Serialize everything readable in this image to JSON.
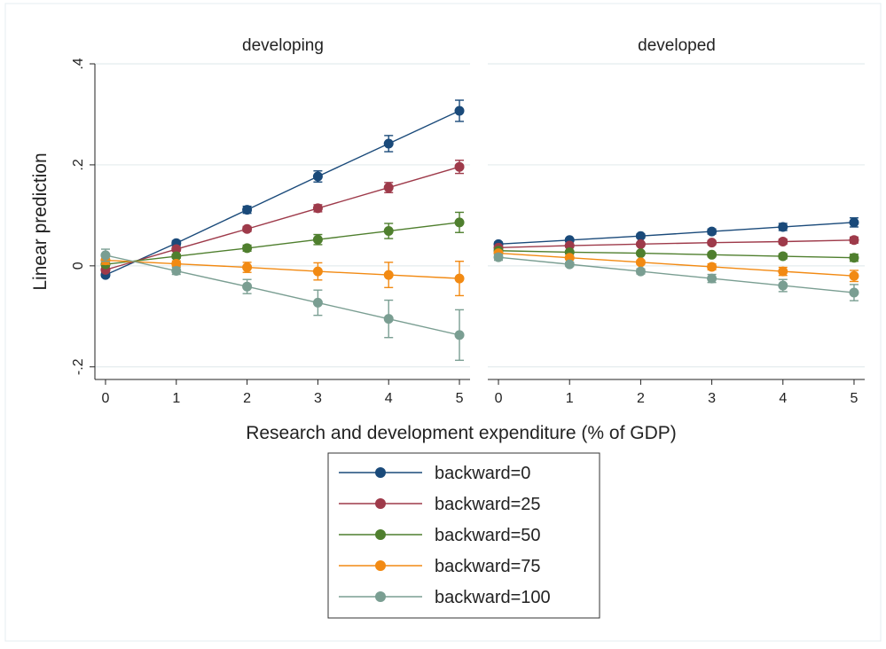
{
  "chart_data": {
    "type": "line",
    "ylabel": "Linear prediction",
    "xlabel": "Research and development expenditure (% of GDP)",
    "x": [
      0,
      1,
      2,
      3,
      4,
      5
    ],
    "xticks": [
      "0",
      "1",
      "2",
      "3",
      "4",
      "5"
    ],
    "yticks": [
      {
        "value": -0.2,
        "label": "-.2"
      },
      {
        "value": 0,
        "label": "0"
      },
      {
        "value": 0.2,
        "label": ".2"
      },
      {
        "value": 0.4,
        "label": ".4"
      }
    ],
    "ylim": [
      -0.225,
      0.4
    ],
    "xlim": [
      -0.15,
      5.15
    ],
    "grid": true,
    "legend_position": "bottom",
    "panels": [
      {
        "title": "developing",
        "series": [
          {
            "name": "backward=0",
            "color": "#1a4a7a",
            "values": [
              -0.018,
              0.045,
              0.111,
              0.177,
              0.242,
              0.307
            ],
            "ci": [
              0.004,
              0.005,
              0.007,
              0.011,
              0.016,
              0.021
            ]
          },
          {
            "name": "backward=25",
            "color": "#9e3a4a",
            "values": [
              -0.008,
              0.033,
              0.073,
              0.114,
              0.155,
              0.196
            ],
            "ci": [
              0.004,
              0.004,
              0.005,
              0.007,
              0.01,
              0.013
            ]
          },
          {
            "name": "backward=50",
            "color": "#4f7f2e",
            "values": [
              0.003,
              0.019,
              0.035,
              0.052,
              0.069,
              0.086
            ],
            "ci": [
              0.004,
              0.004,
              0.006,
              0.01,
              0.015,
              0.02
            ]
          },
          {
            "name": "backward=75",
            "color": "#f28a13",
            "values": [
              0.011,
              0.004,
              -0.003,
              -0.011,
              -0.018,
              -0.025
            ],
            "ci": [
              0.008,
              0.006,
              0.01,
              0.017,
              0.025,
              0.034
            ]
          },
          {
            "name": "backward=100",
            "color": "#7a9e92",
            "values": [
              0.021,
              -0.01,
              -0.041,
              -0.073,
              -0.105,
              -0.137
            ],
            "ci": [
              0.012,
              0.007,
              0.014,
              0.025,
              0.037,
              0.05
            ]
          }
        ]
      },
      {
        "title": "developed",
        "series": [
          {
            "name": "backward=0",
            "color": "#1a4a7a",
            "values": [
              0.043,
              0.051,
              0.059,
              0.068,
              0.077,
              0.086
            ],
            "ci": [
              0.004,
              0.003,
              0.004,
              0.005,
              0.007,
              0.009
            ]
          },
          {
            "name": "backward=25",
            "color": "#9e3a4a",
            "values": [
              0.036,
              0.04,
              0.043,
              0.046,
              0.048,
              0.051
            ],
            "ci": [
              0.003,
              0.003,
              0.003,
              0.004,
              0.005,
              0.006
            ]
          },
          {
            "name": "backward=50",
            "color": "#4f7f2e",
            "values": [
              0.03,
              0.027,
              0.025,
              0.022,
              0.019,
              0.016
            ],
            "ci": [
              0.003,
              0.003,
              0.003,
              0.004,
              0.005,
              0.007
            ]
          },
          {
            "name": "backward=75",
            "color": "#f28a13",
            "values": [
              0.025,
              0.016,
              0.007,
              -0.002,
              -0.011,
              -0.02
            ],
            "ci": [
              0.004,
              0.003,
              0.004,
              0.006,
              0.008,
              0.011
            ]
          },
          {
            "name": "backward=100",
            "color": "#7a9e92",
            "values": [
              0.017,
              0.003,
              -0.011,
              -0.025,
              -0.039,
              -0.053
            ],
            "ci": [
              0.006,
              0.004,
              0.005,
              0.008,
              0.012,
              0.016
            ]
          }
        ]
      }
    ]
  }
}
